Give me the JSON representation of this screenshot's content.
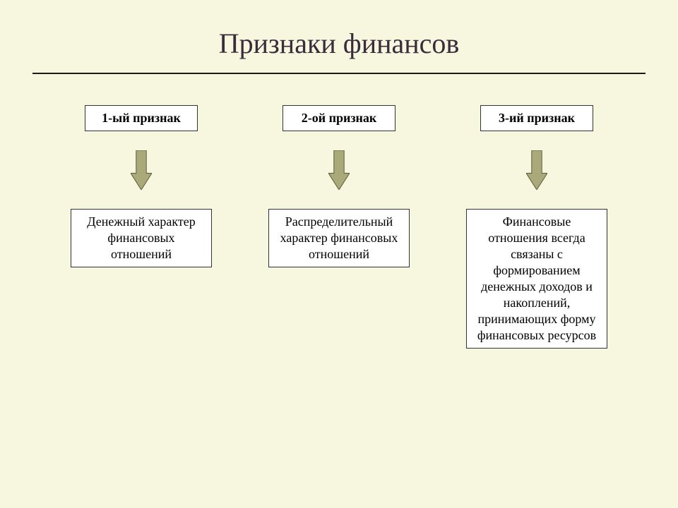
{
  "type": "flowchart",
  "background_color": "#f7f7e0",
  "font_family": "'Times New Roman', Times, serif",
  "title": {
    "text": "Признаки финансов",
    "fontsize": 40,
    "color": "#3a2c3a"
  },
  "divider_color": "#1a1a1a",
  "box_border_color": "#333333",
  "arrow": {
    "fill": "#a9a97a",
    "stroke": "#5a5a3a",
    "width": 30,
    "height": 56,
    "gap_height": 110
  },
  "layout": {
    "header_box_width": 160,
    "header_box_height": 36,
    "header_fontsize": 18,
    "desc_box_width": 200,
    "desc_fontsize": 18,
    "column_gap": 80
  },
  "columns": [
    {
      "header": "1-ый признак",
      "desc": "Денежный характер финансовых отношений"
    },
    {
      "header": "2-ой признак",
      "desc": "Распределительный характер финансовых отношений"
    },
    {
      "header": "3-ий признак",
      "desc": "Финансовые отношения всегда связаны с формированием денежных доходов и накоплений, принимающих форму финансовых ресурсов"
    }
  ]
}
